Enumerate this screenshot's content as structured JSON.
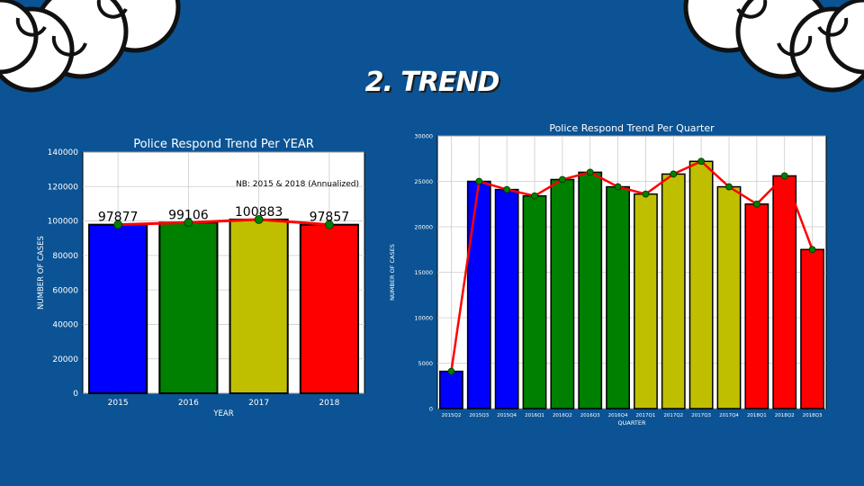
{
  "slide": {
    "title": "2. TREND"
  },
  "chart_data": [
    {
      "type": "bar",
      "title": "Police Respond Trend Per YEAR",
      "xlabel": "YEAR",
      "ylabel": "NUMBER OF CASES",
      "annotation": "NB: 2015 & 2018 (Annualized)",
      "categories": [
        "2015",
        "2016",
        "2017",
        "2018"
      ],
      "values": [
        97877,
        99106,
        100883,
        97857
      ],
      "data_labels": [
        "97877",
        "99106",
        "100883",
        "97857"
      ],
      "bar_colors": [
        "#0000ff",
        "#008000",
        "#bfbf00",
        "#ff0000"
      ],
      "line_color": "#ff0000",
      "marker_color": "#008000",
      "ylim": [
        0,
        140000
      ],
      "yticks": [
        0,
        20000,
        40000,
        60000,
        80000,
        100000,
        120000,
        140000
      ],
      "grid": true
    },
    {
      "type": "bar",
      "title": "Police Respond Trend Per Quarter",
      "xlabel": "QUARTER",
      "ylabel": "NUMBER OF CASES",
      "categories": [
        "2015Q2",
        "2015Q3",
        "2015Q4",
        "2016Q1",
        "2016Q2",
        "2016Q3",
        "2016Q4",
        "2017Q1",
        "2017Q2",
        "2017Q3",
        "2017Q4",
        "2018Q1",
        "2018Q2",
        "2018Q3"
      ],
      "values": [
        4100,
        25000,
        24100,
        23400,
        25200,
        26000,
        24400,
        23600,
        25800,
        27200,
        24400,
        22500,
        25600,
        17500
      ],
      "bar_colors": [
        "#0000ff",
        "#0000ff",
        "#0000ff",
        "#008000",
        "#008000",
        "#008000",
        "#008000",
        "#bfbf00",
        "#bfbf00",
        "#bfbf00",
        "#bfbf00",
        "#ff0000",
        "#ff0000",
        "#ff0000"
      ],
      "line_color": "#ff0000",
      "marker_color": "#008000",
      "ylim": [
        0,
        30000
      ],
      "yticks": [
        0,
        5000,
        10000,
        15000,
        20000,
        25000,
        30000
      ],
      "grid": true
    }
  ]
}
